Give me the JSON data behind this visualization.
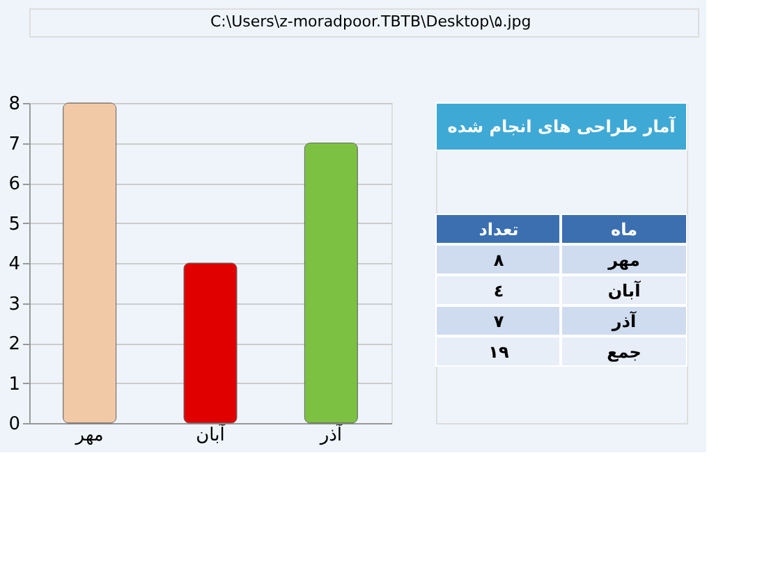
{
  "chart_data": {
    "type": "bar",
    "title": "آمار طراحی های انجام شده",
    "categories": [
      "مهر",
      "آبان",
      "آذر"
    ],
    "values": [
      8,
      4,
      7
    ],
    "colors": [
      "#f2c9a6",
      "#e00000",
      "#7dc142"
    ],
    "ylim": [
      0,
      8
    ],
    "yticks": [
      0,
      1,
      2,
      3,
      4,
      5,
      6,
      7,
      8
    ],
    "grid": "y",
    "annotations": [
      "C:\\Users\\z-moradpoor.TBTB\\Desktop\\۵.jpg",
      "ماه",
      "تعداد",
      "٨",
      "٤",
      "٧",
      "جمع",
      "١٩"
    ]
  }
}
